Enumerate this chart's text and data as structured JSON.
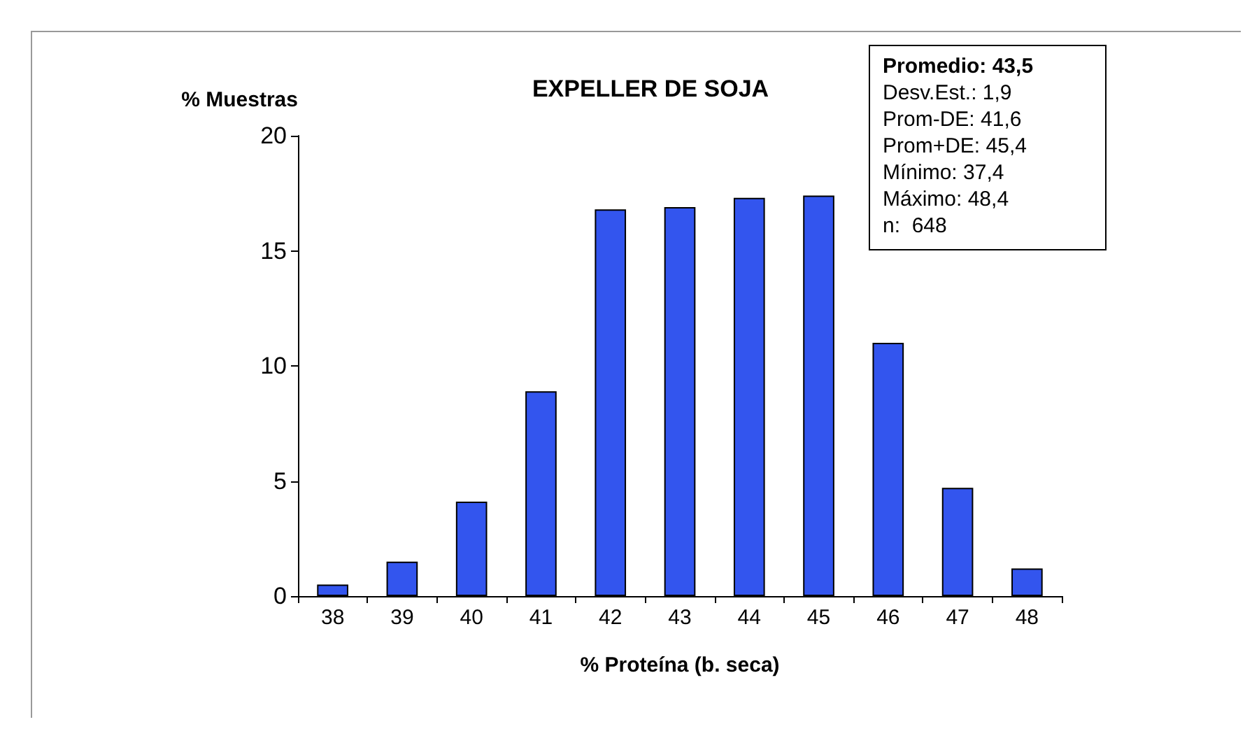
{
  "chart_data": {
    "type": "bar",
    "title": "EXPELLER DE SOJA",
    "xlabel": "% Proteína (b. seca)",
    "ylabel": "% Muestras",
    "categories": [
      "38",
      "39",
      "40",
      "41",
      "42",
      "43",
      "44",
      "45",
      "46",
      "47",
      "48"
    ],
    "values": [
      0.5,
      1.5,
      4.1,
      8.9,
      16.8,
      16.9,
      17.3,
      17.4,
      11.0,
      4.7,
      1.2
    ],
    "color": "#3355ee",
    "ylim": [
      0,
      20
    ],
    "yticks": [
      0,
      5,
      10,
      15,
      20
    ],
    "grid": false,
    "annotations": [
      "Promedio: 43,5",
      "Desv.Est.: 1,9",
      "Prom-DE: 41,6",
      "Prom+DE: 45,4",
      "Mínimo: 37,4",
      "Máximo: 48,4",
      "n:  648"
    ]
  }
}
